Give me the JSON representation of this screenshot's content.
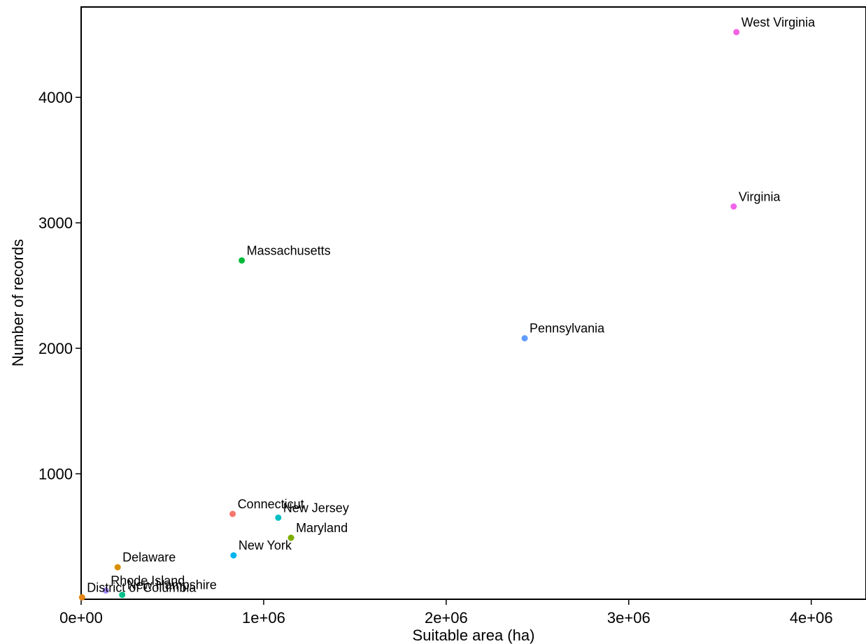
{
  "chart_data": {
    "type": "scatter",
    "title": "",
    "xlabel": "Suitable area (ha)",
    "ylabel": "Number of records",
    "xlim": [
      0,
      4300000
    ],
    "ylim": [
      0,
      4720
    ],
    "x_ticks": [
      {
        "value": 0,
        "label": "0e+00"
      },
      {
        "value": 1000000,
        "label": "1e+06"
      },
      {
        "value": 2000000,
        "label": "2e+06"
      },
      {
        "value": 3000000,
        "label": "3e+06"
      },
      {
        "value": 4000000,
        "label": "4e+06"
      }
    ],
    "y_ticks": [
      {
        "value": 1000,
        "label": "1000"
      },
      {
        "value": 2000,
        "label": "2000"
      },
      {
        "value": 3000,
        "label": "3000"
      },
      {
        "value": 4000,
        "label": "4000"
      }
    ],
    "grid": false,
    "legend": "none",
    "points": [
      {
        "name": "West Virginia",
        "x": 3590000,
        "y": 4520,
        "color": "#F564E3"
      },
      {
        "name": "Virginia",
        "x": 3575000,
        "y": 3130,
        "color": "#F066EA"
      },
      {
        "name": "Massachusetts",
        "x": 880000,
        "y": 2700,
        "color": "#00BA38"
      },
      {
        "name": "Pennsylvania",
        "x": 2430000,
        "y": 2080,
        "color": "#619CFF"
      },
      {
        "name": "Connecticut",
        "x": 830000,
        "y": 680,
        "color": "#F8766D"
      },
      {
        "name": "New Jersey",
        "x": 1080000,
        "y": 650,
        "color": "#00BFC4"
      },
      {
        "name": "Maryland",
        "x": 1150000,
        "y": 490,
        "color": "#7CAE00"
      },
      {
        "name": "New York",
        "x": 835000,
        "y": 350,
        "color": "#00B4EF"
      },
      {
        "name": "Delaware",
        "x": 200000,
        "y": 255,
        "color": "#D89000"
      },
      {
        "name": "Rhode Island",
        "x": 135000,
        "y": 70,
        "color": "#A58AFF"
      },
      {
        "name": "New Hampshire",
        "x": 225000,
        "y": 35,
        "color": "#00C08B"
      },
      {
        "name": "District of Columbia",
        "x": 5000,
        "y": 15,
        "color": "#E68613"
      }
    ]
  }
}
